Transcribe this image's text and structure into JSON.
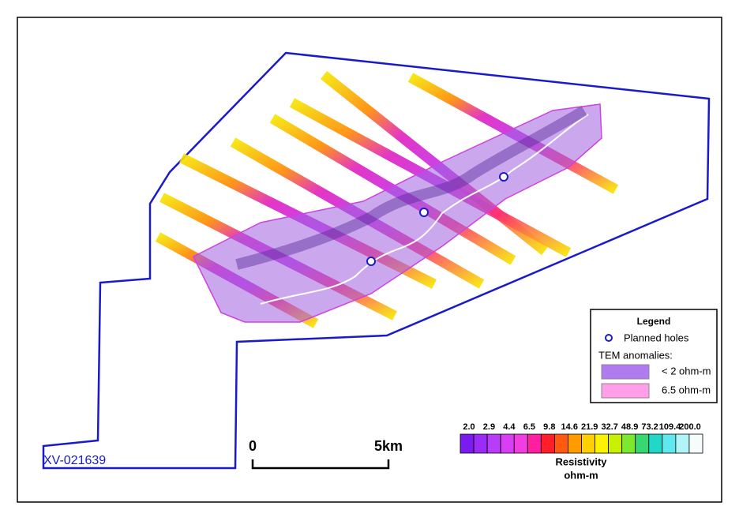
{
  "map": {
    "label": "XV-021639",
    "scale_bar": {
      "start": "0",
      "end": "5km"
    },
    "legend": {
      "title": "Legend",
      "holes": "Planned holes",
      "subtitle": "TEM anomalies:",
      "anomalies": [
        {
          "label": "< 2 ohm-m",
          "color": "#b07af0"
        },
        {
          "label": "6.5 ohm-m",
          "color": "#ff9fe8"
        }
      ]
    },
    "colorbar": {
      "labels": [
        "2.0",
        "2.9",
        "4.4",
        "6.5",
        "9.8",
        "14.6",
        "21.9",
        "32.7",
        "48.9",
        "73.2",
        "109.4",
        "200.0"
      ],
      "colors": [
        "#7a1cf0",
        "#9a2cf5",
        "#b93cf8",
        "#d83ff5",
        "#f03ee0",
        "#ff1fa0",
        "#ff1f2a",
        "#ff5a10",
        "#ff9a00",
        "#ffd000",
        "#fff200",
        "#c8f000",
        "#7ce830",
        "#38d870",
        "#20d8c8",
        "#60e8f0",
        "#b0f4f8",
        "#f4fcfc"
      ],
      "title": "Resistivity",
      "unit": "ohm-m"
    }
  }
}
